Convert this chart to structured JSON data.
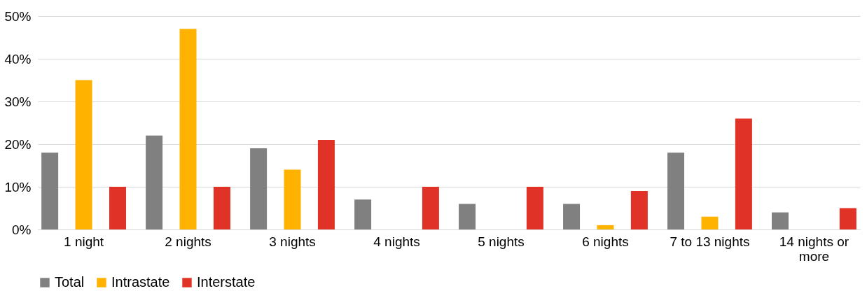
{
  "chart_data": {
    "type": "bar",
    "categories": [
      "1 night",
      "2 nights",
      "3 nights",
      "4 nights",
      "5 nights",
      "6 nights",
      "7 to 13 nights",
      "14 nights or more"
    ],
    "series": [
      {
        "name": "Total",
        "color": "#808080",
        "values": [
          18,
          22,
          19,
          7,
          6,
          6,
          18,
          4
        ]
      },
      {
        "name": "Intrastate",
        "color": "#ffb300",
        "values": [
          35,
          47,
          14,
          0,
          0,
          1,
          3,
          0
        ]
      },
      {
        "name": "Interstate",
        "color": "#e03226",
        "values": [
          10,
          10,
          21,
          10,
          10,
          9,
          26,
          5
        ]
      }
    ],
    "ylim": [
      0,
      50
    ],
    "yticks": [
      {
        "value": 0,
        "label": "0%"
      },
      {
        "value": 10,
        "label": "10%"
      },
      {
        "value": 20,
        "label": "20%"
      },
      {
        "value": 30,
        "label": "30%"
      },
      {
        "value": 40,
        "label": "40%"
      },
      {
        "value": 50,
        "label": "50%"
      }
    ],
    "grid": "y",
    "legend": "bottom"
  }
}
